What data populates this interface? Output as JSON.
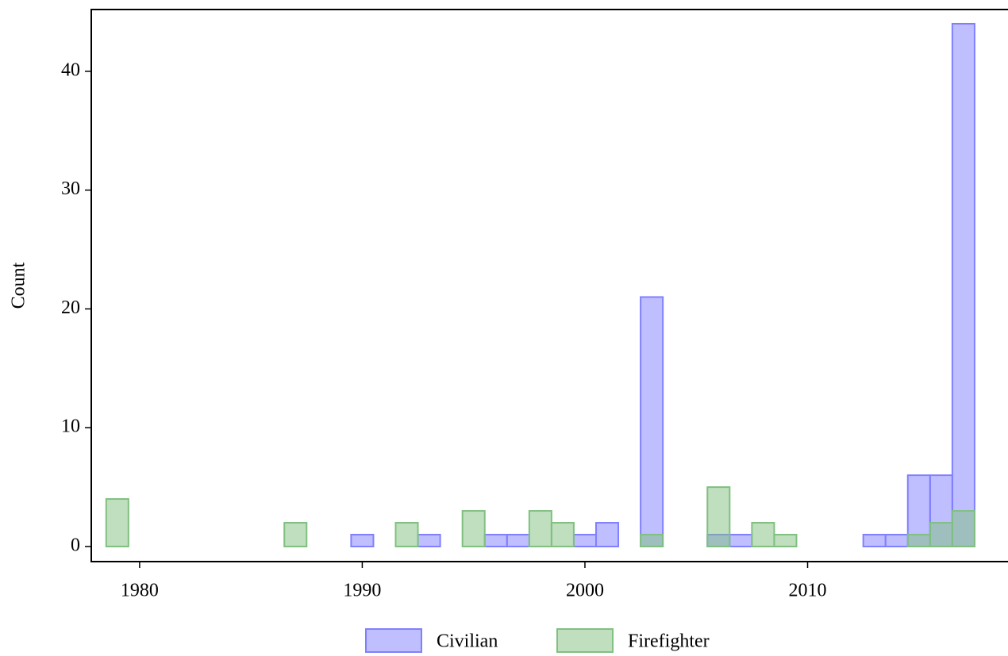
{
  "chart_data": {
    "type": "histogram",
    "y_label": "Count",
    "bins": [
      1978.5,
      1979.5,
      1980.5,
      1981.5,
      1982.5,
      1983.5,
      1984.5,
      1985.5,
      1986.5,
      1987.5,
      1988.5,
      1989.5,
      1990.5,
      1991.5,
      1992.5,
      1993.5,
      1994.5,
      1995.5,
      1996.5,
      1997.5,
      1998.5,
      1999.5,
      2000.5,
      2001.5,
      2002.5,
      2003.5,
      2004.5,
      2005.5,
      2006.5,
      2007.5,
      2008.5,
      2009.5,
      2010.5,
      2011.5,
      2012.5,
      2013.5,
      2014.5,
      2015.5,
      2016.5,
      2017.5
    ],
    "series": [
      {
        "name": "Civilian",
        "color": "#8080ff",
        "values": [
          0,
          0,
          0,
          0,
          0,
          0,
          0,
          0,
          0,
          0,
          0,
          1,
          0,
          0,
          1,
          0,
          0,
          1,
          1,
          0,
          0,
          1,
          2,
          0,
          21,
          0,
          0,
          1,
          1,
          0,
          0,
          0,
          0,
          0,
          1,
          1,
          6,
          6,
          44
        ]
      },
      {
        "name": "Firefighter",
        "color": "#80c080",
        "values": [
          4,
          0,
          0,
          0,
          0,
          0,
          0,
          0,
          2,
          0,
          0,
          0,
          0,
          2,
          0,
          0,
          3,
          0,
          0,
          3,
          2,
          0,
          0,
          0,
          1,
          0,
          0,
          5,
          0,
          2,
          1,
          0,
          0,
          0,
          0,
          0,
          1,
          2,
          3
        ]
      }
    ],
    "xlim": [
      1977.83,
      2019.0
    ],
    "xticks": [
      1980,
      1990,
      2000,
      2010
    ],
    "ylim": [
      -1.27,
      45.2
    ],
    "yticks": [
      0,
      10,
      20,
      30,
      40
    ],
    "legend": "bottom"
  }
}
